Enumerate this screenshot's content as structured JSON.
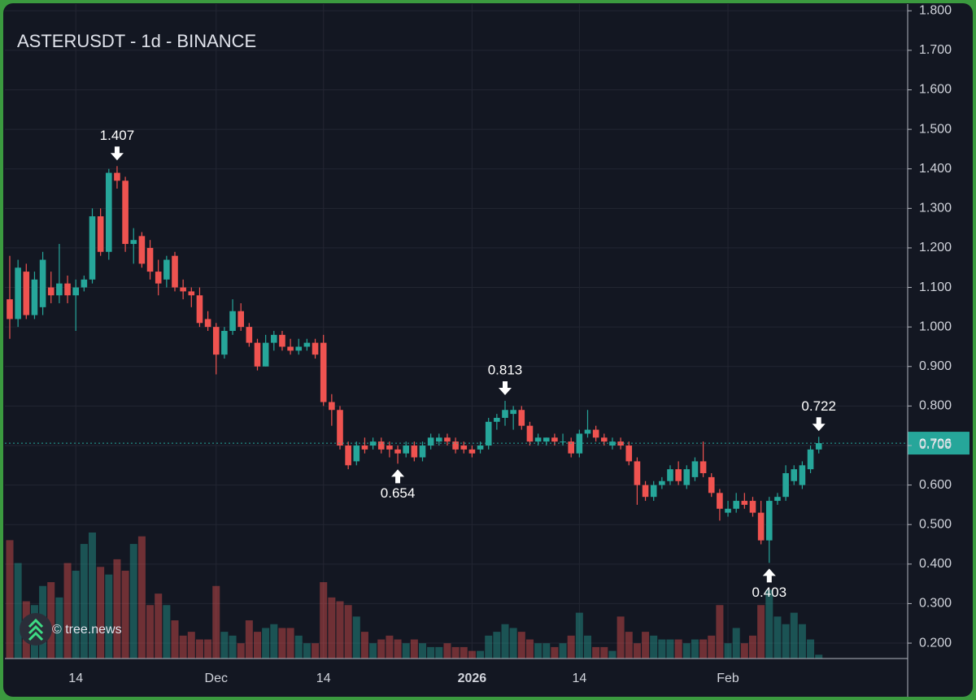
{
  "chart_data": {
    "type": "candlestick",
    "title": "ASTERUSDT - 1d - BINANCE",
    "watermark": "© tree.news",
    "categories": [
      null,
      null,
      null,
      null,
      null,
      null,
      null,
      null,
      "14",
      null,
      null,
      null,
      null,
      null,
      null,
      null,
      null,
      null,
      null,
      null,
      null,
      null,
      null,
      null,
      null,
      "Dec",
      null,
      null,
      null,
      null,
      null,
      null,
      null,
      null,
      null,
      null,
      null,
      null,
      "14",
      null,
      null,
      null,
      null,
      null,
      null,
      null,
      null,
      null,
      null,
      null,
      null,
      null,
      null,
      null,
      null,
      null,
      "2026",
      null,
      null,
      null,
      null,
      null,
      null,
      null,
      null,
      null,
      null,
      null,
      null,
      "14",
      null,
      null,
      null,
      null,
      null,
      null,
      null,
      null,
      null,
      null,
      null,
      null,
      null,
      null,
      null,
      null,
      null,
      "Feb",
      null,
      null,
      null,
      null,
      null,
      null,
      null,
      null,
      null,
      null,
      null
    ],
    "open": [
      1.07,
      1.02,
      1.14,
      1.03,
      1.05,
      1.1,
      1.08,
      1.11,
      1.08,
      1.1,
      1.12,
      1.28,
      1.19,
      1.39,
      1.37,
      1.21,
      1.23,
      1.2,
      1.14,
      1.12,
      1.18,
      1.1,
      1.09,
      1.08,
      1.02,
      1.0,
      0.93,
      0.99,
      1.04,
      1.0,
      0.96,
      0.9,
      0.96,
      0.98,
      0.95,
      0.94,
      0.95,
      0.96,
      0.96,
      0.81,
      0.79,
      0.7,
      0.66,
      0.7,
      0.7,
      0.71,
      0.7,
      0.69,
      0.68,
      0.7,
      0.67,
      0.7,
      0.71,
      0.72,
      0.71,
      0.7,
      0.69,
      0.69,
      0.7,
      0.76,
      0.77,
      0.78,
      0.79,
      0.75,
      0.71,
      0.71,
      0.72,
      0.71,
      0.71,
      0.68,
      0.73,
      0.74,
      0.72,
      0.7,
      0.71,
      0.7,
      0.66,
      0.6,
      0.57,
      0.6,
      0.61,
      0.64,
      0.6,
      0.62,
      0.66,
      0.62,
      0.58,
      0.53,
      0.54,
      0.56,
      0.56,
      0.53,
      0.46,
      0.56,
      0.57,
      0.61,
      0.6,
      0.64,
      0.69
    ],
    "high": [
      1.18,
      1.17,
      1.16,
      1.14,
      1.19,
      1.14,
      1.21,
      1.13,
      1.12,
      1.13,
      1.3,
      1.3,
      1.4,
      1.407,
      1.38,
      1.25,
      1.24,
      1.22,
      1.17,
      1.18,
      1.19,
      1.12,
      1.1,
      1.1,
      1.04,
      1.01,
      1.0,
      1.07,
      1.06,
      1.01,
      0.97,
      0.98,
      0.99,
      0.99,
      0.97,
      0.97,
      0.97,
      0.97,
      0.98,
      0.83,
      0.8,
      0.71,
      0.71,
      0.72,
      0.72,
      0.72,
      0.71,
      0.7,
      0.71,
      0.71,
      0.71,
      0.73,
      0.73,
      0.73,
      0.72,
      0.71,
      0.7,
      0.71,
      0.77,
      0.78,
      0.813,
      0.8,
      0.8,
      0.76,
      0.73,
      0.72,
      0.73,
      0.73,
      0.72,
      0.74,
      0.79,
      0.75,
      0.73,
      0.72,
      0.72,
      0.71,
      0.67,
      0.61,
      0.61,
      0.62,
      0.65,
      0.66,
      0.65,
      0.67,
      0.71,
      0.63,
      0.59,
      0.56,
      0.58,
      0.58,
      0.57,
      0.56,
      0.57,
      0.58,
      0.65,
      0.65,
      0.66,
      0.7,
      0.722
    ],
    "low": [
      0.97,
      1.0,
      1.02,
      1.02,
      1.03,
      1.06,
      1.06,
      1.06,
      0.99,
      1.09,
      1.11,
      1.18,
      1.17,
      1.35,
      1.19,
      1.16,
      1.15,
      1.12,
      1.08,
      1.1,
      1.09,
      1.07,
      1.05,
      1.0,
      0.99,
      0.88,
      0.92,
      0.98,
      0.99,
      0.95,
      0.89,
      0.9,
      0.94,
      0.94,
      0.93,
      0.93,
      0.94,
      0.92,
      0.8,
      0.75,
      0.69,
      0.64,
      0.65,
      0.68,
      0.69,
      0.68,
      0.67,
      0.654,
      0.67,
      0.66,
      0.66,
      0.69,
      0.7,
      0.7,
      0.68,
      0.68,
      0.67,
      0.68,
      0.69,
      0.74,
      0.75,
      0.74,
      0.74,
      0.7,
      0.7,
      0.7,
      0.7,
      0.7,
      0.67,
      0.67,
      0.72,
      0.71,
      0.7,
      0.69,
      0.69,
      0.65,
      0.55,
      0.56,
      0.56,
      0.59,
      0.6,
      0.6,
      0.59,
      0.61,
      0.62,
      0.57,
      0.51,
      0.52,
      0.53,
      0.54,
      0.52,
      0.45,
      0.403,
      0.55,
      0.56,
      0.6,
      0.59,
      0.63,
      0.68
    ],
    "close": [
      1.02,
      1.15,
      1.03,
      1.12,
      1.17,
      1.08,
      1.11,
      1.08,
      1.1,
      1.12,
      1.28,
      1.19,
      1.39,
      1.37,
      1.21,
      1.22,
      1.16,
      1.14,
      1.11,
      1.17,
      1.1,
      1.09,
      1.08,
      1.01,
      1.0,
      0.93,
      0.99,
      1.04,
      1.0,
      0.96,
      0.9,
      0.96,
      0.98,
      0.95,
      0.94,
      0.95,
      0.96,
      0.93,
      0.81,
      0.79,
      0.7,
      0.65,
      0.7,
      0.69,
      0.71,
      0.69,
      0.69,
      0.68,
      0.7,
      0.67,
      0.7,
      0.72,
      0.72,
      0.71,
      0.69,
      0.69,
      0.68,
      0.7,
      0.76,
      0.77,
      0.79,
      0.79,
      0.75,
      0.71,
      0.72,
      0.72,
      0.71,
      0.71,
      0.68,
      0.73,
      0.74,
      0.72,
      0.71,
      0.71,
      0.7,
      0.66,
      0.6,
      0.57,
      0.6,
      0.61,
      0.64,
      0.61,
      0.64,
      0.66,
      0.63,
      0.58,
      0.54,
      0.54,
      0.56,
      0.55,
      0.53,
      0.46,
      0.56,
      0.57,
      0.63,
      0.64,
      0.65,
      0.69,
      0.706
    ],
    "volume": [
      155,
      125,
      75,
      70,
      95,
      100,
      80,
      125,
      115,
      150,
      165,
      120,
      110,
      130,
      115,
      150,
      160,
      70,
      85,
      70,
      50,
      30,
      35,
      25,
      25,
      95,
      35,
      30,
      20,
      50,
      35,
      40,
      45,
      40,
      40,
      30,
      20,
      20,
      100,
      80,
      75,
      70,
      55,
      35,
      20,
      25,
      30,
      25,
      20,
      25,
      20,
      15,
      15,
      20,
      15,
      15,
      10,
      10,
      30,
      35,
      45,
      40,
      35,
      25,
      20,
      20,
      15,
      20,
      30,
      60,
      30,
      15,
      15,
      10,
      55,
      35,
      20,
      35,
      30,
      25,
      25,
      25,
      20,
      25,
      25,
      30,
      70,
      20,
      40,
      20,
      30,
      70,
      90,
      55,
      45,
      60,
      45,
      25,
      5
    ],
    "up_color": "#26a69a",
    "down_color": "#ef5350",
    "ylim": [
      0.161,
      1.817
    ],
    "yticks": [
      {
        "value": 0.2,
        "label": "0.200"
      },
      {
        "value": 0.3,
        "label": "0.300"
      },
      {
        "value": 0.4,
        "label": "0.400"
      },
      {
        "value": 0.5,
        "label": "0.500"
      },
      {
        "value": 0.6,
        "label": "0.600"
      },
      {
        "value": 0.7,
        "label": "0.700"
      },
      {
        "value": 0.8,
        "label": "0.800"
      },
      {
        "value": 0.9,
        "label": "0.900"
      },
      {
        "value": 1.0,
        "label": "1.000"
      },
      {
        "value": 1.1,
        "label": "1.100"
      },
      {
        "value": 1.2,
        "label": "1.200"
      },
      {
        "value": 1.3,
        "label": "1.300"
      },
      {
        "value": 1.4,
        "label": "1.400"
      },
      {
        "value": 1.5,
        "label": "1.500"
      },
      {
        "value": 1.6,
        "label": "1.600"
      },
      {
        "value": 1.7,
        "label": "1.700"
      },
      {
        "value": 1.8,
        "label": "1.800"
      }
    ],
    "grid": true,
    "price_line": {
      "value": 0.706,
      "label": "0.706"
    },
    "annotations": [
      {
        "value": 1.407,
        "label": "1.407",
        "at": "high"
      },
      {
        "value": 0.654,
        "label": "0.654",
        "at": "low"
      },
      {
        "value": 0.813,
        "label": "0.813",
        "at": "high"
      },
      {
        "value": 0.403,
        "label": "0.403",
        "at": "low"
      },
      {
        "value": 0.722,
        "label": "0.722",
        "at": "high"
      }
    ]
  }
}
